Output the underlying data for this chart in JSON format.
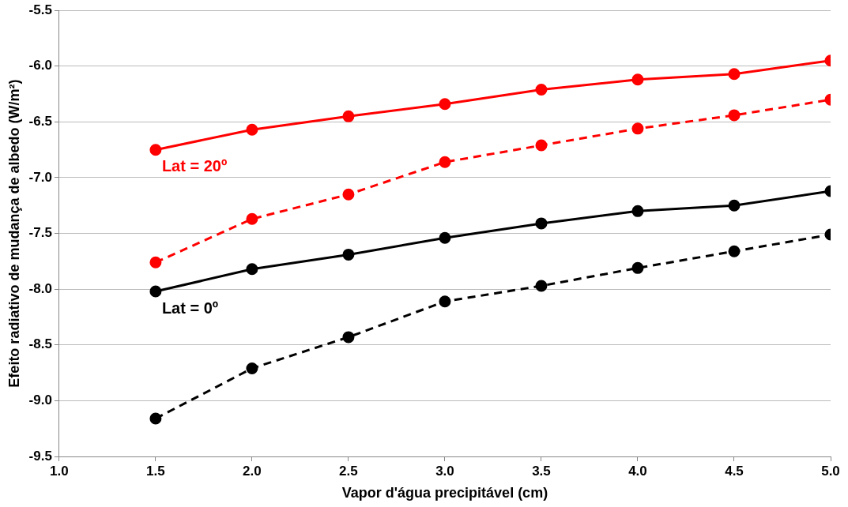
{
  "chart_data": {
    "type": "line",
    "xlabel": "Vapor d'água precipitável (cm)",
    "ylabel": "Efeito radiativo de mudança de albedo (W/m²)",
    "x": [
      1.5,
      2.0,
      2.5,
      3.0,
      3.5,
      4.0,
      4.5,
      5.0
    ],
    "series": [
      {
        "name": "Lat = 20º",
        "color": "#ff0000",
        "line_style": "solid",
        "values": [
          -6.75,
          -6.57,
          -6.45,
          -6.34,
          -6.21,
          -6.12,
          -6.07,
          -5.95
        ]
      },
      {
        "color": "#ff0000",
        "line_style": "dashed",
        "values": [
          -7.76,
          -7.37,
          -7.15,
          -6.86,
          -6.71,
          -6.56,
          -6.44,
          -6.3
        ]
      },
      {
        "name": "Lat = 0º",
        "color": "#000000",
        "line_style": "solid",
        "values": [
          -8.02,
          -7.82,
          -7.69,
          -7.54,
          -7.41,
          -7.3,
          -7.25,
          -7.12
        ]
      },
      {
        "color": "#000000",
        "line_style": "dashed",
        "values": [
          -9.16,
          -8.71,
          -8.43,
          -8.11,
          -7.97,
          -7.81,
          -7.66,
          -7.51
        ]
      }
    ],
    "xlim": [
      1.0,
      5.0
    ],
    "xticks": [
      {
        "value": 1.0,
        "label": "1.0"
      },
      {
        "value": 1.5,
        "label": "1.5"
      },
      {
        "value": 2.0,
        "label": "2.0"
      },
      {
        "value": 2.5,
        "label": "2.5"
      },
      {
        "value": 3.0,
        "label": "3.0"
      },
      {
        "value": 3.5,
        "label": "3.5"
      },
      {
        "value": 4.0,
        "label": "4.0"
      },
      {
        "value": 4.5,
        "label": "4.5"
      },
      {
        "value": 5.0,
        "label": "5.0"
      }
    ],
    "ylim": [
      -9.5,
      -5.5
    ],
    "yticks": [
      {
        "value": -9.5,
        "label": "-9.5"
      },
      {
        "value": -9.0,
        "label": "-9.0"
      },
      {
        "value": -8.5,
        "label": "-8.5"
      },
      {
        "value": -8.0,
        "label": "-8.0"
      },
      {
        "value": -7.5,
        "label": "-7.5"
      },
      {
        "value": -7.0,
        "label": "-7.0"
      },
      {
        "value": -6.5,
        "label": "-6.5"
      },
      {
        "value": -6.0,
        "label": "-6.0"
      },
      {
        "value": -5.5,
        "label": "-5.5"
      }
    ],
    "grid": "y",
    "legend": false,
    "marker": "circle"
  }
}
